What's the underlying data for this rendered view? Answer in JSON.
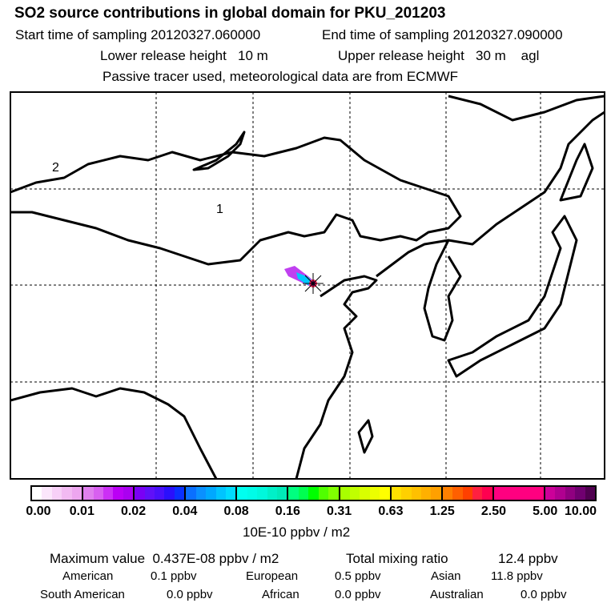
{
  "header": {
    "title": "SO2 source contributions in global domain for PKU_201203",
    "start": "Start time of sampling 20120327.060000",
    "end": "End time of sampling 20120327.090000",
    "lower": "Lower release height   10 m",
    "upper": "Upper release height   30 m    agl",
    "note": "Passive tracer used, meteorological data are from ECMWF"
  },
  "map": {
    "labels": [
      "1",
      "2"
    ]
  },
  "colorbar": {
    "ticks": [
      "0.00",
      "0.01",
      "0.02",
      "0.04",
      "0.08",
      "0.16",
      "0.31",
      "0.63",
      "1.25",
      "2.50",
      "5.00",
      "10.00"
    ],
    "unit": "10E-10 ppbv / m2",
    "colors": [
      [
        "#ffffff",
        "#fbe6fb",
        "#f7d0f7",
        "#f2baf2",
        "#eda6ef"
      ],
      [
        "#e080ee",
        "#d860f0",
        "#cc30f5",
        "#bb00f5",
        "#aa00f0"
      ],
      [
        "#7a00f5",
        "#6010f8",
        "#4a10fa",
        "#2a10fc",
        "#0a30ff"
      ],
      [
        "#0a70ff",
        "#0a90ff",
        "#00a8ff",
        "#00c4ff",
        "#00dcff"
      ],
      [
        "#00fff0",
        "#00fce8",
        "#00f8dc",
        "#00f0c8",
        "#00eab8"
      ],
      [
        "#00ff80",
        "#00ff50",
        "#00ff00",
        "#50ff00",
        "#80ff00"
      ],
      [
        "#a8ff00",
        "#c0ff00",
        "#d8ff00",
        "#ecff00",
        "#ffff00"
      ],
      [
        "#ffe000",
        "#ffd000",
        "#ffc000",
        "#ffb000",
        "#ffa000"
      ],
      [
        "#ff8000",
        "#ff6000",
        "#ff4000",
        "#ff2040",
        "#ff0050"
      ],
      [
        "#ff0080",
        "#ff0080",
        "#ff0080",
        "#ff0080",
        "#ff0080"
      ],
      [
        "#cc0099",
        "#b00090",
        "#900080",
        "#700070",
        "#500050"
      ]
    ]
  },
  "summary": {
    "max": "Maximum value  0.437E-08 ppbv / m2",
    "total_label": "Total mixing ratio",
    "total_value": "12.4 ppbv",
    "rows": [
      [
        {
          "k": "American",
          "v": "0.1 ppbv"
        },
        {
          "k": "European",
          "v": "0.5 ppbv"
        },
        {
          "k": "Asian",
          "v": "11.8 ppbv"
        }
      ],
      [
        {
          "k": "South American",
          "v": "0.0 ppbv"
        },
        {
          "k": "African",
          "v": "0.0 ppbv"
        },
        {
          "k": "Australian",
          "v": "0.0 ppbv"
        }
      ]
    ]
  }
}
